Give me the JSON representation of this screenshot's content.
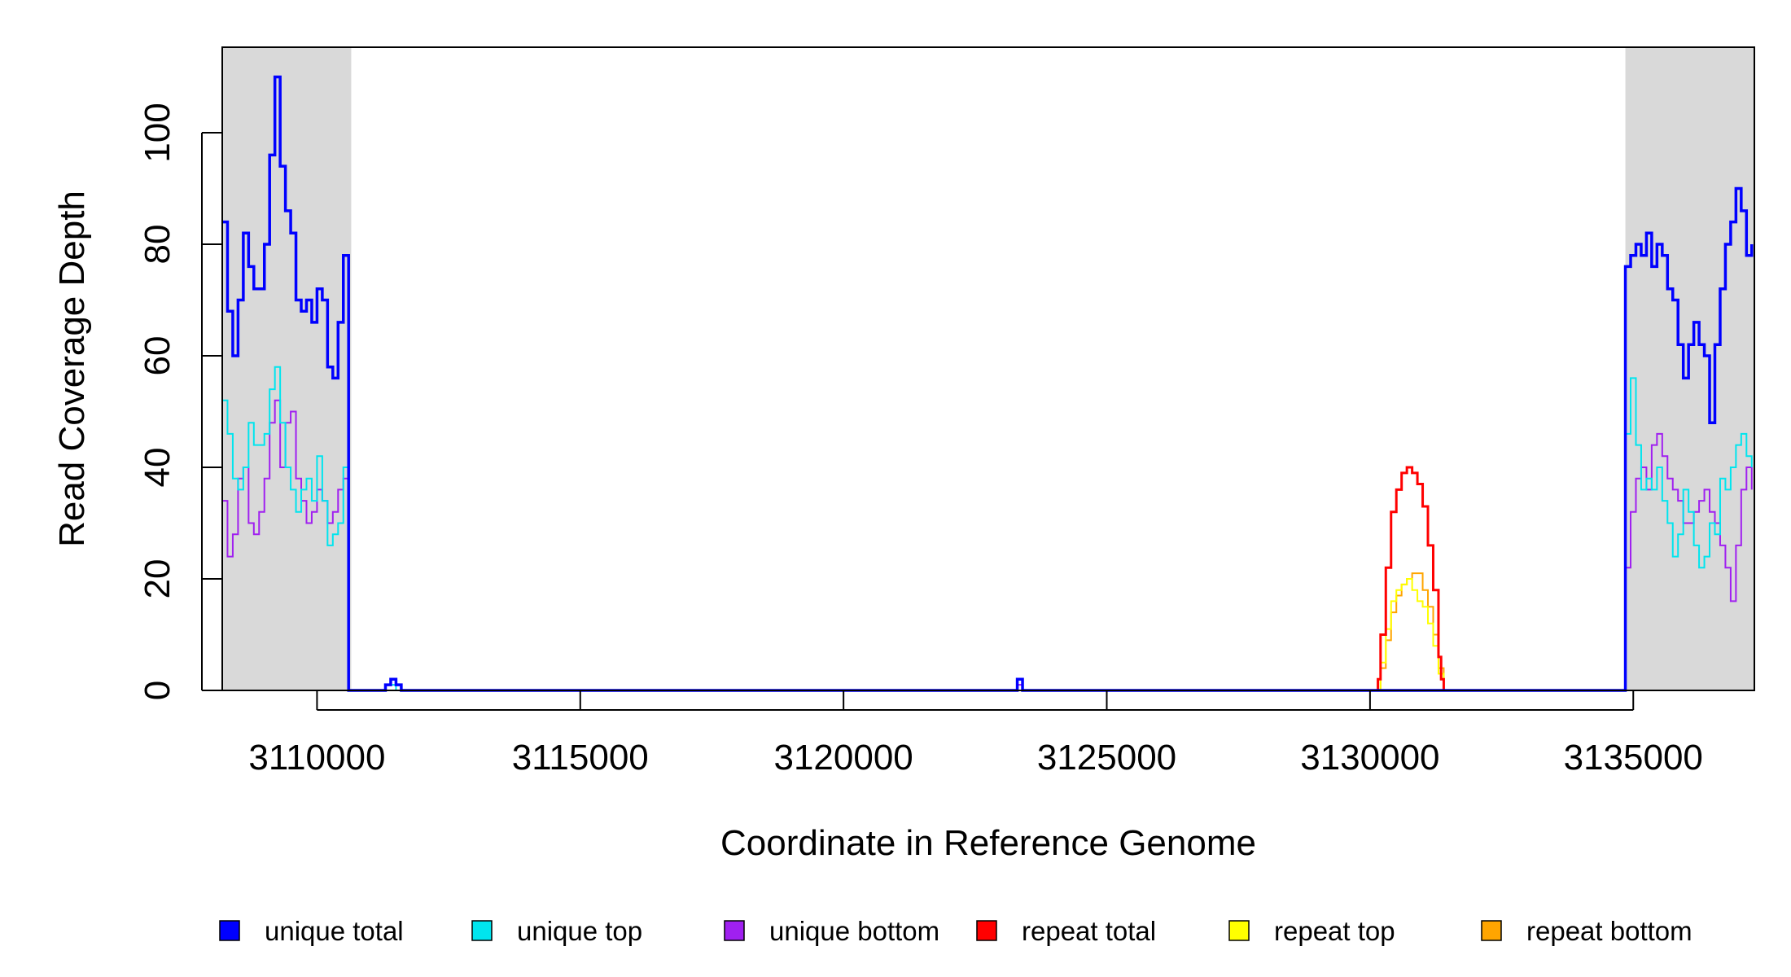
{
  "chart_data": {
    "type": "line",
    "title": "",
    "xlabel": "Coordinate in Reference Genome",
    "ylabel": "Read Coverage Depth",
    "xlim": [
      3108200,
      3137300
    ],
    "ylim": [
      0,
      115
    ],
    "x_ticks": [
      3110000,
      3115000,
      3120000,
      3125000,
      3130000,
      3135000
    ],
    "x_tick_labels": [
      "3110000",
      "3115000",
      "3120000",
      "3125000",
      "3130000",
      "3135000"
    ],
    "y_ticks": [
      0,
      20,
      40,
      60,
      80,
      100
    ],
    "y_tick_labels": [
      "0",
      "20",
      "40",
      "60",
      "80",
      "100"
    ],
    "grid": false,
    "legend_position": "bottom",
    "shaded_regions": [
      {
        "x0": 3108200,
        "x1": 3110650,
        "color": "#d9d9d9"
      },
      {
        "x0": 3134850,
        "x1": 3137300,
        "color": "#d9d9d9"
      }
    ],
    "series": [
      {
        "name": "unique total",
        "color": "#0000ff",
        "x": [
          3108200,
          3108300,
          3108400,
          3108500,
          3108600,
          3108700,
          3108800,
          3108900,
          3109000,
          3109100,
          3109200,
          3109300,
          3109400,
          3109500,
          3109600,
          3109700,
          3109800,
          3109900,
          3110000,
          3110100,
          3110200,
          3110300,
          3110400,
          3110500,
          3110600,
          3110620,
          3111200,
          3111300,
          3111400,
          3111500,
          3111600,
          3111700,
          3123250,
          3123300,
          3123350,
          3123400,
          3123450,
          3134800,
          3134850,
          3134950,
          3135050,
          3135150,
          3135250,
          3135350,
          3135450,
          3135550,
          3135650,
          3135750,
          3135850,
          3135950,
          3136050,
          3136150,
          3136250,
          3136350,
          3136450,
          3136550,
          3136650,
          3136750,
          3136850,
          3136950,
          3137050,
          3137150,
          3137250
        ],
        "values": [
          84,
          68,
          60,
          70,
          82,
          76,
          72,
          72,
          80,
          96,
          110,
          94,
          86,
          82,
          70,
          68,
          70,
          66,
          72,
          70,
          58,
          56,
          66,
          78,
          0,
          0,
          0,
          1,
          2,
          1,
          0,
          0,
          0,
          2,
          2,
          0,
          0,
          0,
          76,
          78,
          80,
          78,
          82,
          76,
          80,
          78,
          72,
          70,
          62,
          56,
          62,
          66,
          62,
          60,
          48,
          62,
          72,
          80,
          84,
          90,
          86,
          78,
          80
        ]
      },
      {
        "name": "unique top",
        "color": "#00e5ee",
        "x": [
          3108200,
          3108300,
          3108400,
          3108500,
          3108600,
          3108700,
          3108800,
          3108900,
          3109000,
          3109100,
          3109200,
          3109300,
          3109400,
          3109500,
          3109600,
          3109700,
          3109800,
          3109900,
          3110000,
          3110100,
          3110200,
          3110300,
          3110400,
          3110500,
          3110600,
          3110620,
          3111200,
          3111300,
          3111400,
          3111500,
          3111600,
          3134800,
          3134850,
          3134950,
          3135050,
          3135150,
          3135250,
          3135350,
          3135450,
          3135550,
          3135650,
          3135750,
          3135850,
          3135950,
          3136050,
          3136150,
          3136250,
          3136350,
          3136450,
          3136550,
          3136650,
          3136750,
          3136850,
          3136950,
          3137050,
          3137150,
          3137250
        ],
        "values": [
          52,
          46,
          38,
          36,
          40,
          48,
          44,
          44,
          46,
          54,
          58,
          48,
          40,
          36,
          32,
          36,
          38,
          34,
          42,
          34,
          26,
          28,
          30,
          40,
          0,
          0,
          0,
          1,
          1,
          0,
          0,
          0,
          46,
          56,
          44,
          36,
          38,
          36,
          40,
          34,
          30,
          24,
          28,
          36,
          32,
          26,
          22,
          24,
          30,
          28,
          38,
          36,
          40,
          44,
          46,
          42,
          40
        ]
      },
      {
        "name": "unique bottom",
        "color": "#a020f0",
        "x": [
          3108200,
          3108300,
          3108400,
          3108500,
          3108600,
          3108700,
          3108800,
          3108900,
          3109000,
          3109100,
          3109200,
          3109300,
          3109400,
          3109500,
          3109600,
          3109700,
          3109800,
          3109900,
          3110000,
          3110100,
          3110200,
          3110300,
          3110400,
          3110500,
          3110600,
          3110620,
          3123250,
          3123300,
          3123350,
          3123400,
          3134800,
          3134850,
          3134950,
          3135050,
          3135150,
          3135250,
          3135350,
          3135450,
          3135550,
          3135650,
          3135750,
          3135850,
          3135950,
          3136050,
          3136150,
          3136250,
          3136350,
          3136450,
          3136550,
          3136650,
          3136750,
          3136850,
          3136950,
          3137050,
          3137150,
          3137250
        ],
        "values": [
          34,
          24,
          28,
          38,
          40,
          30,
          28,
          32,
          38,
          48,
          52,
          40,
          48,
          50,
          38,
          34,
          30,
          32,
          36,
          34,
          30,
          32,
          36,
          38,
          0,
          0,
          0,
          1,
          1,
          0,
          0,
          22,
          32,
          38,
          40,
          36,
          44,
          46,
          42,
          38,
          36,
          34,
          30,
          30,
          32,
          34,
          36,
          32,
          30,
          26,
          22,
          16,
          26,
          36,
          40,
          36
        ]
      },
      {
        "name": "repeat total",
        "color": "#ff0000",
        "x": [
          3130100,
          3130150,
          3130200,
          3130300,
          3130400,
          3130500,
          3130600,
          3130700,
          3130800,
          3130900,
          3131000,
          3131100,
          3131200,
          3131300,
          3131350,
          3131400
        ],
        "values": [
          0,
          2,
          10,
          22,
          32,
          36,
          39,
          40,
          39,
          37,
          33,
          26,
          18,
          6,
          2,
          0
        ]
      },
      {
        "name": "repeat top",
        "color": "#ffff00",
        "x": [
          3130100,
          3130200,
          3130300,
          3130400,
          3130500,
          3130600,
          3130700,
          3130800,
          3130900,
          3131000,
          3131100,
          3131200,
          3131300,
          3131400
        ],
        "values": [
          0,
          5,
          11,
          16,
          18,
          19,
          20,
          18,
          16,
          15,
          12,
          8,
          3,
          0
        ]
      },
      {
        "name": "repeat bottom",
        "color": "#ffa500",
        "x": [
          3108200,
          3110600,
          3111200,
          3130100,
          3130200,
          3130300,
          3130400,
          3130500,
          3130600,
          3130700,
          3130800,
          3130900,
          3131000,
          3131100,
          3131200,
          3131300,
          3131400,
          3134800,
          3137300
        ],
        "values": [
          0,
          0,
          0,
          0,
          4,
          9,
          14,
          17,
          19,
          20,
          21,
          21,
          18,
          15,
          10,
          4,
          0,
          0,
          0
        ]
      }
    ]
  }
}
